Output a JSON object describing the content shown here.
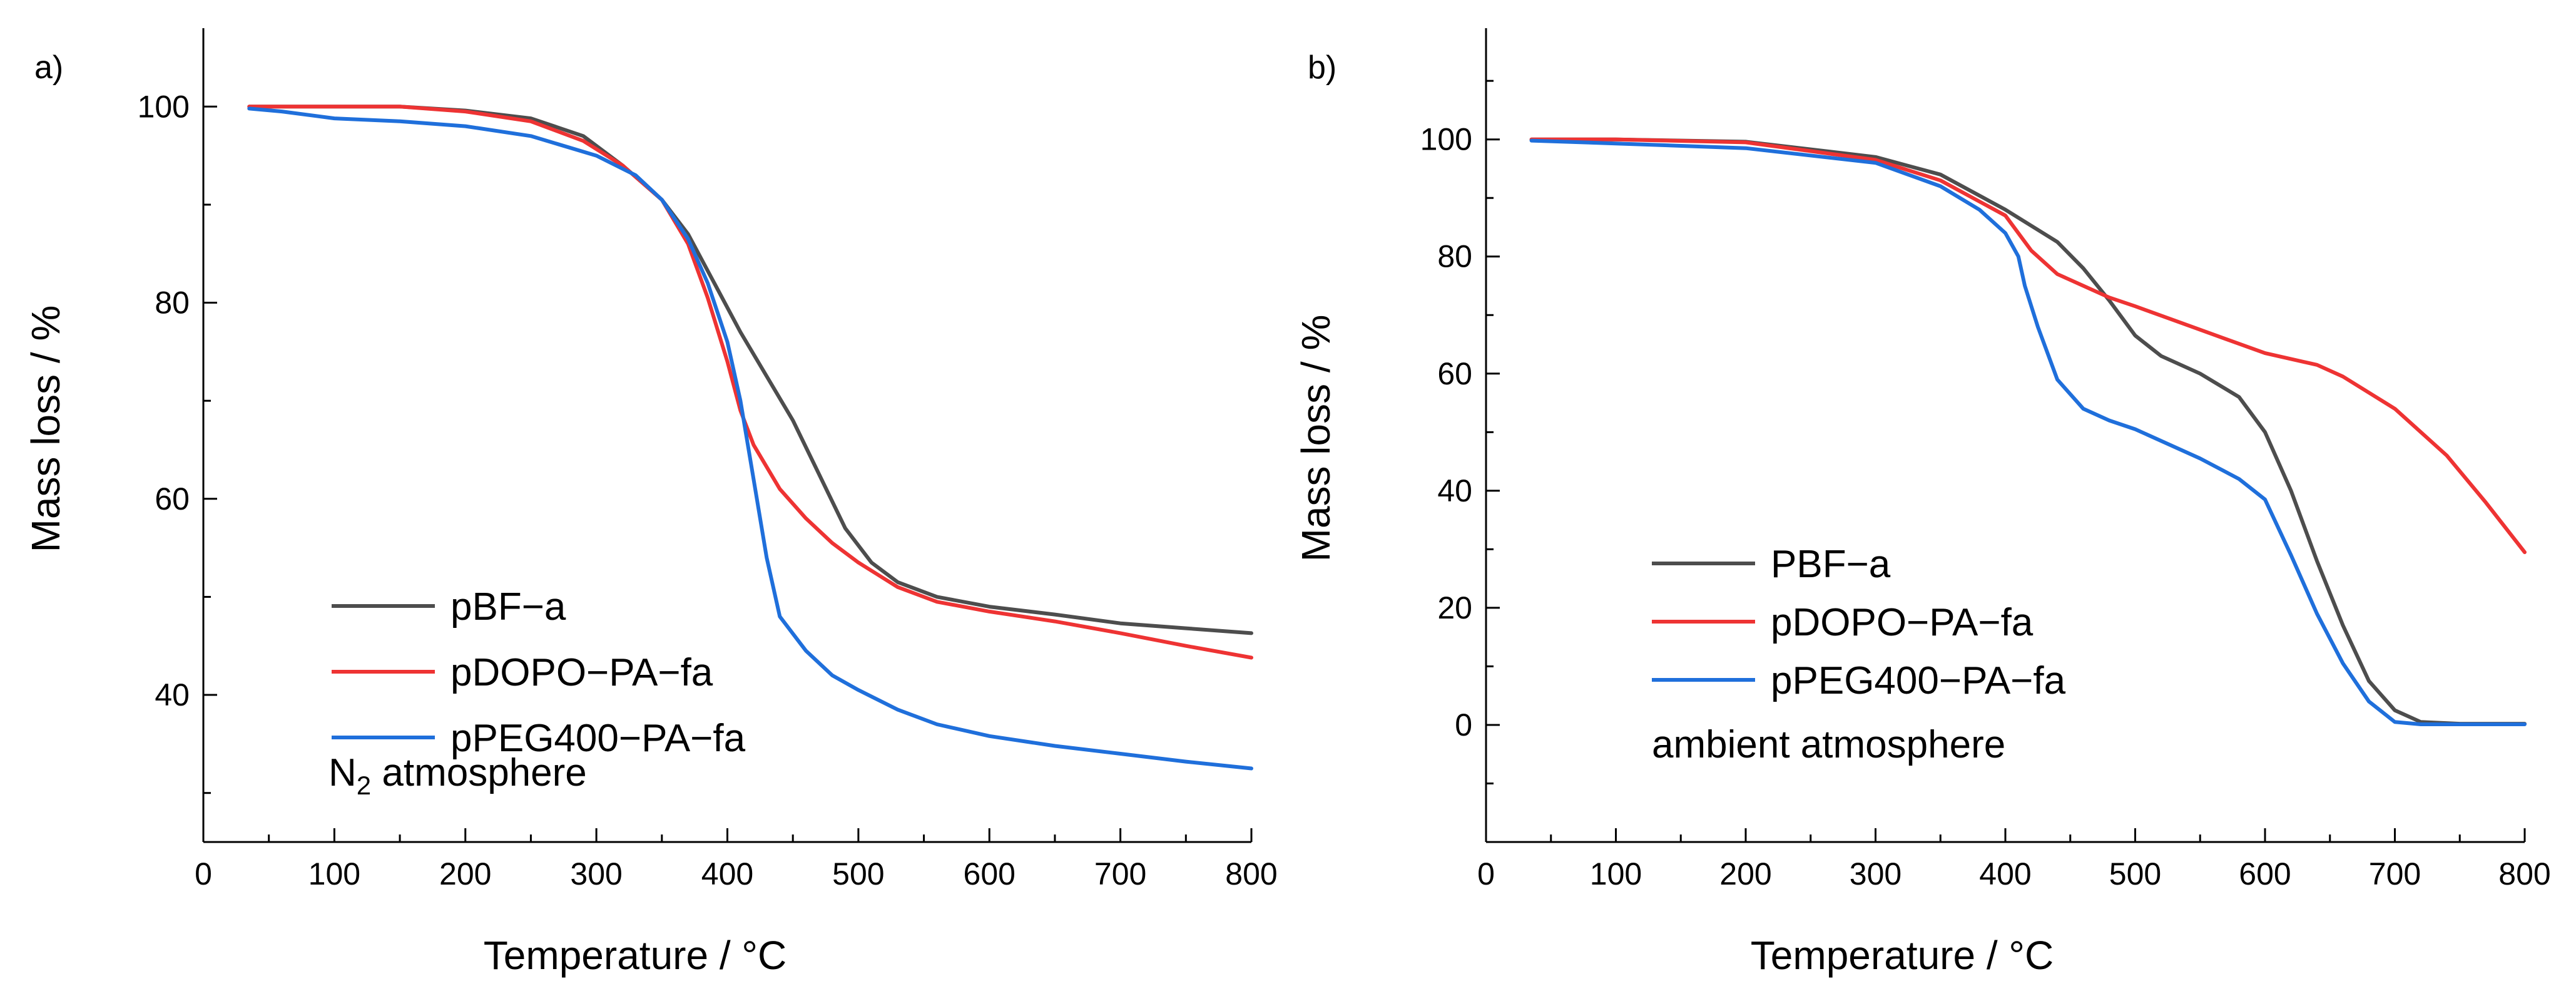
{
  "chart_data": [
    {
      "panel": "a)",
      "type": "line",
      "xlabel": "Temperature / °C",
      "ylabel": "Mass loss / %",
      "xlim": [
        0,
        800
      ],
      "ylim": [
        25,
        108
      ],
      "xticks": [
        0,
        100,
        200,
        300,
        400,
        500,
        600,
        700,
        800
      ],
      "yticks": [
        40,
        60,
        80,
        100
      ],
      "legend_position": "bottom-left",
      "annotation": {
        "main": "N",
        "sub": "2",
        "rest": " atmosphere"
      },
      "series": [
        {
          "name": "pBF−a",
          "color": "#4d4d4d",
          "x": [
            35,
            100,
            150,
            200,
            250,
            290,
            320,
            350,
            370,
            390,
            410,
            430,
            450,
            470,
            490,
            510,
            530,
            560,
            600,
            650,
            700,
            750,
            800
          ],
          "y": [
            100,
            100,
            100,
            99.6,
            98.8,
            97,
            94,
            90.5,
            87,
            82,
            77,
            72.5,
            68,
            62.5,
            57,
            53.5,
            51.5,
            50,
            49,
            48.2,
            47.3,
            46.8,
            46.3
          ]
        },
        {
          "name": "pDOPO−PA−fa",
          "color": "#ee3333",
          "x": [
            35,
            100,
            150,
            200,
            250,
            290,
            320,
            350,
            370,
            385,
            400,
            410,
            420,
            440,
            460,
            480,
            500,
            530,
            560,
            600,
            650,
            700,
            750,
            800
          ],
          "y": [
            100,
            100,
            100,
            99.5,
            98.5,
            96.5,
            94,
            90.5,
            86,
            80.5,
            74,
            69,
            65.5,
            61,
            58,
            55.5,
            53.5,
            51,
            49.5,
            48.5,
            47.5,
            46.3,
            45,
            43.8
          ]
        },
        {
          "name": "pPEG400−PA−fa",
          "color": "#1f6fdb",
          "x": [
            35,
            60,
            100,
            150,
            200,
            250,
            300,
            330,
            350,
            370,
            385,
            400,
            410,
            420,
            430,
            440,
            460,
            480,
            500,
            530,
            560,
            600,
            650,
            700,
            750,
            800
          ],
          "y": [
            99.8,
            99.5,
            98.8,
            98.5,
            98,
            97,
            95,
            93,
            90.5,
            86.5,
            82,
            76,
            70,
            62,
            54,
            48,
            44.5,
            42,
            40.5,
            38.5,
            37,
            35.8,
            34.8,
            34,
            33.2,
            32.5
          ]
        }
      ]
    },
    {
      "panel": "b)",
      "type": "line",
      "xlabel": "Temperature / °C",
      "ylabel": "Mass loss / %",
      "xlim": [
        0,
        800
      ],
      "ylim": [
        -20,
        119
      ],
      "xticks": [
        0,
        100,
        200,
        300,
        400,
        500,
        600,
        700,
        800
      ],
      "yticks": [
        0,
        20,
        40,
        60,
        80,
        100
      ],
      "legend_position": "bottom-left",
      "annotation": {
        "main": "ambient atmosphere",
        "sub": "",
        "rest": ""
      },
      "series": [
        {
          "name": "PBF−a",
          "color": "#4d4d4d",
          "x": [
            35,
            100,
            200,
            300,
            350,
            400,
            440,
            460,
            480,
            500,
            520,
            550,
            580,
            600,
            620,
            640,
            660,
            680,
            700,
            720,
            750,
            800
          ],
          "y": [
            100,
            100,
            99.6,
            97,
            94,
            88,
            82.5,
            78,
            72.5,
            66.5,
            63,
            60,
            56,
            50,
            40,
            28,
            17,
            7.5,
            2.5,
            0.5,
            0.2,
            0.2
          ]
        },
        {
          "name": "pDOPO−PA−fa",
          "color": "#ee3333",
          "x": [
            35,
            100,
            200,
            300,
            350,
            400,
            420,
            440,
            460,
            480,
            500,
            550,
            600,
            640,
            660,
            700,
            740,
            770,
            800
          ],
          "y": [
            100,
            100,
            99.5,
            96.5,
            93,
            87,
            81,
            77,
            75,
            73,
            71.5,
            67.5,
            63.5,
            61.5,
            59.5,
            54,
            46,
            38,
            29.5
          ]
        },
        {
          "name": "pPEG400−PA−fa",
          "color": "#1f6fdb",
          "x": [
            35,
            100,
            200,
            300,
            350,
            380,
            400,
            410,
            415,
            425,
            440,
            460,
            480,
            500,
            550,
            580,
            600,
            620,
            640,
            660,
            680,
            700,
            720,
            750,
            800
          ],
          "y": [
            99.8,
            99.3,
            98.5,
            96,
            92,
            88,
            84,
            80,
            75,
            68,
            59,
            54,
            52,
            50.5,
            45.5,
            42,
            38.5,
            29,
            19,
            10.5,
            4,
            0.5,
            0.1,
            0.1,
            0.1
          ]
        }
      ]
    }
  ]
}
